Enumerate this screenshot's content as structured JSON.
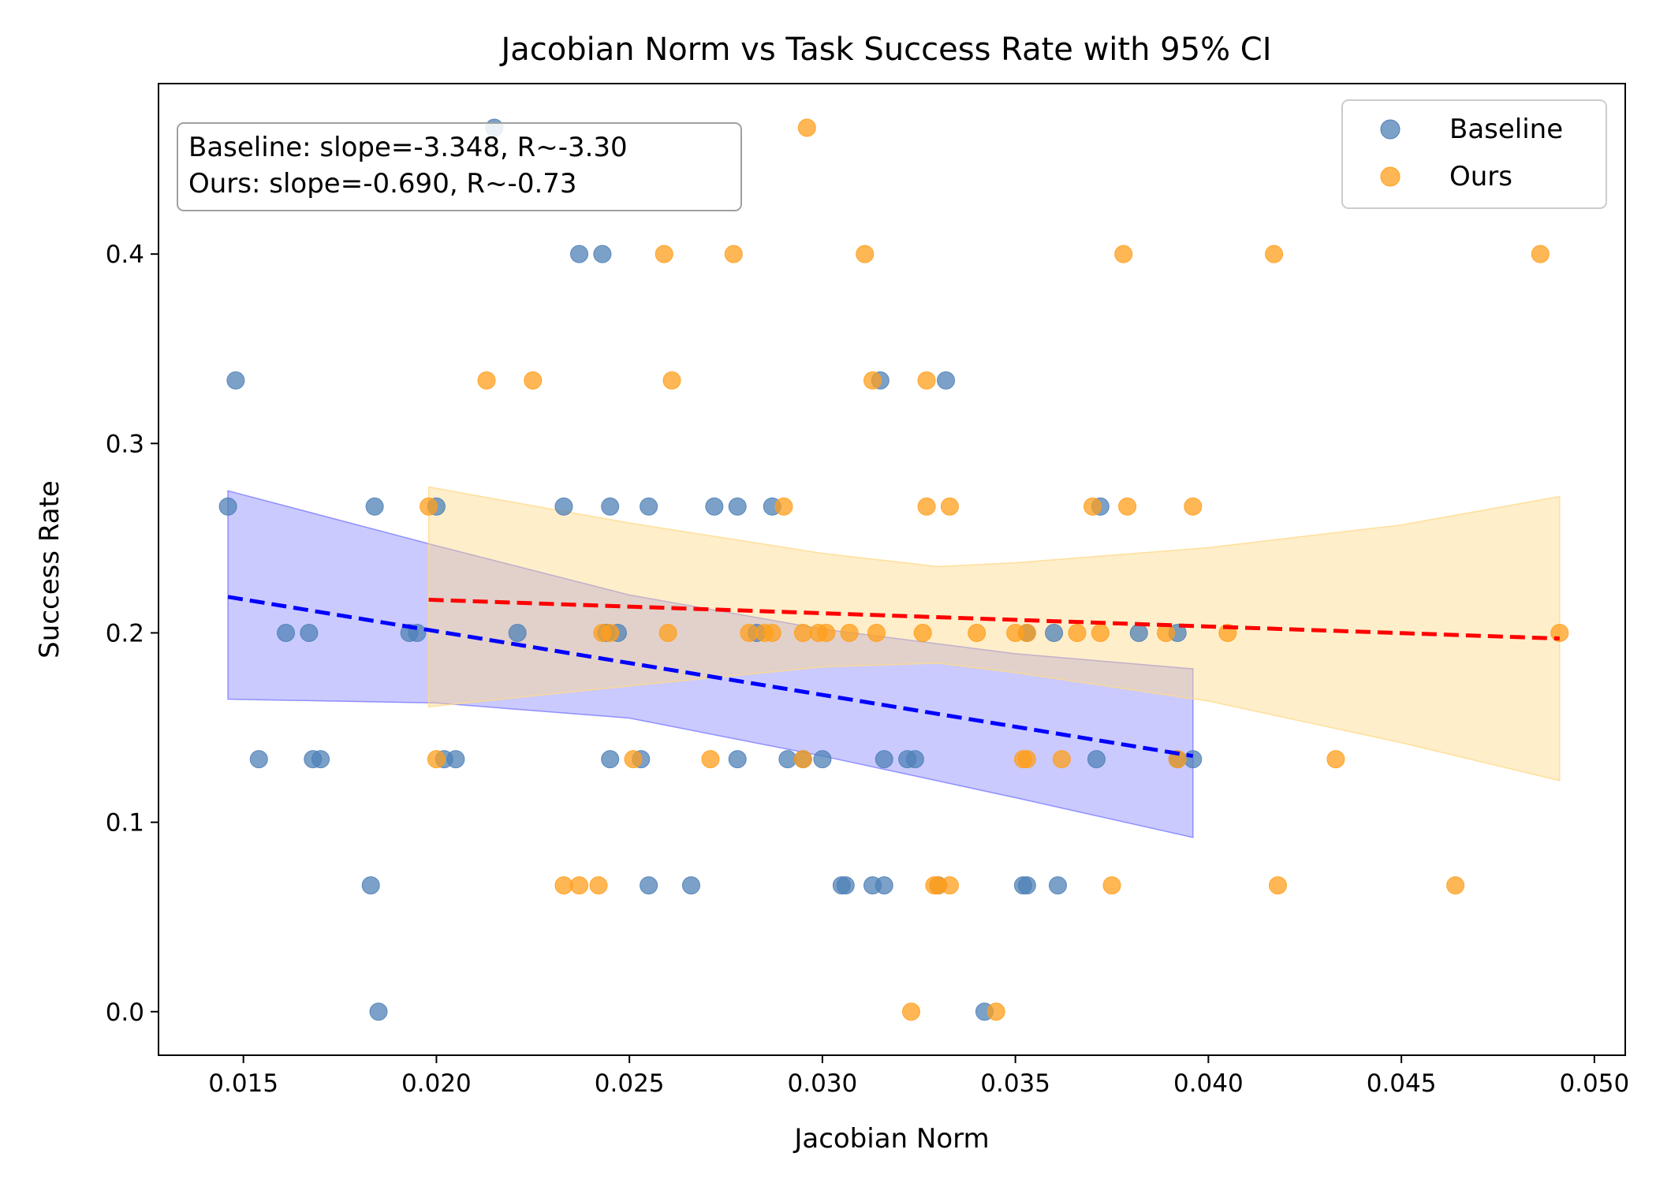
{
  "chart_data": {
    "type": "scatter",
    "title": "Jacobian Norm vs Task Success Rate with 95% CI",
    "xlabel": "Jacobian Norm",
    "ylabel": "Success Rate",
    "xlim": [
      0.0128,
      0.0508
    ],
    "ylim": [
      -0.023,
      0.49
    ],
    "xticks": [
      {
        "value": 0.015,
        "label": "0.015"
      },
      {
        "value": 0.02,
        "label": "0.020"
      },
      {
        "value": 0.025,
        "label": "0.025"
      },
      {
        "value": 0.03,
        "label": "0.030"
      },
      {
        "value": 0.035,
        "label": "0.035"
      },
      {
        "value": 0.04,
        "label": "0.040"
      },
      {
        "value": 0.045,
        "label": "0.045"
      },
      {
        "value": 0.05,
        "label": "0.050"
      }
    ],
    "yticks": [
      {
        "value": 0.0,
        "label": "0.0"
      },
      {
        "value": 0.1,
        "label": "0.1"
      },
      {
        "value": 0.2,
        "label": "0.2"
      },
      {
        "value": 0.3,
        "label": "0.3"
      },
      {
        "value": 0.4,
        "label": "0.4"
      }
    ],
    "legend": {
      "placement": "top-right"
    },
    "annotation": [
      "Baseline: slope=-3.348, R~-3.30",
      "Ours: slope=-0.690, R~-0.73"
    ],
    "series": [
      {
        "name": "Baseline",
        "color": "#4f81b7",
        "points": [
          [
            0.0146,
            0.2667
          ],
          [
            0.0148,
            0.3333
          ],
          [
            0.0154,
            0.1333
          ],
          [
            0.0161,
            0.2
          ],
          [
            0.0167,
            0.2
          ],
          [
            0.0168,
            0.1333
          ],
          [
            0.017,
            0.1333
          ],
          [
            0.0183,
            0.0667
          ],
          [
            0.0184,
            0.2667
          ],
          [
            0.0185,
            0.0
          ],
          [
            0.0193,
            0.2
          ],
          [
            0.0195,
            0.2
          ],
          [
            0.02,
            0.2667
          ],
          [
            0.0202,
            0.1333
          ],
          [
            0.0205,
            0.1333
          ],
          [
            0.0215,
            0.4667
          ],
          [
            0.0221,
            0.2
          ],
          [
            0.0233,
            0.2667
          ],
          [
            0.0237,
            0.4
          ],
          [
            0.0243,
            0.4
          ],
          [
            0.0244,
            0.2
          ],
          [
            0.0245,
            0.1333
          ],
          [
            0.0245,
            0.2667
          ],
          [
            0.0247,
            0.2
          ],
          [
            0.0253,
            0.1333
          ],
          [
            0.0255,
            0.2667
          ],
          [
            0.0255,
            0.0667
          ],
          [
            0.0266,
            0.0667
          ],
          [
            0.0272,
            0.2667
          ],
          [
            0.0278,
            0.2667
          ],
          [
            0.0278,
            0.1333
          ],
          [
            0.0283,
            0.2
          ],
          [
            0.0287,
            0.2667
          ],
          [
            0.0291,
            0.1333
          ],
          [
            0.0295,
            0.1333
          ],
          [
            0.03,
            0.1333
          ],
          [
            0.0305,
            0.0667
          ],
          [
            0.0306,
            0.0667
          ],
          [
            0.0313,
            0.0667
          ],
          [
            0.0315,
            0.3333
          ],
          [
            0.0316,
            0.1333
          ],
          [
            0.0316,
            0.0667
          ],
          [
            0.0322,
            0.1333
          ],
          [
            0.0324,
            0.1333
          ],
          [
            0.033,
            0.0667
          ],
          [
            0.0332,
            0.3333
          ],
          [
            0.0342,
            0.0
          ],
          [
            0.0352,
            0.0667
          ],
          [
            0.0353,
            0.0667
          ],
          [
            0.0353,
            0.2
          ],
          [
            0.036,
            0.2
          ],
          [
            0.0361,
            0.0667
          ],
          [
            0.0371,
            0.1333
          ],
          [
            0.0372,
            0.2667
          ],
          [
            0.0382,
            0.2
          ],
          [
            0.0392,
            0.2
          ],
          [
            0.0392,
            0.1333
          ],
          [
            0.0396,
            0.1333
          ]
        ]
      },
      {
        "name": "Ours",
        "color": "#ff9f1c",
        "points": [
          [
            0.0198,
            0.2667
          ],
          [
            0.02,
            0.1333
          ],
          [
            0.0213,
            0.3333
          ],
          [
            0.0225,
            0.3333
          ],
          [
            0.0233,
            0.0667
          ],
          [
            0.0237,
            0.0667
          ],
          [
            0.0242,
            0.0667
          ],
          [
            0.0243,
            0.2
          ],
          [
            0.0245,
            0.2
          ],
          [
            0.0251,
            0.1333
          ],
          [
            0.0259,
            0.4
          ],
          [
            0.026,
            0.2
          ],
          [
            0.0261,
            0.3333
          ],
          [
            0.0271,
            0.1333
          ],
          [
            0.0277,
            0.4
          ],
          [
            0.0281,
            0.2
          ],
          [
            0.0285,
            0.2
          ],
          [
            0.0287,
            0.2
          ],
          [
            0.029,
            0.2667
          ],
          [
            0.0295,
            0.1333
          ],
          [
            0.0295,
            0.2
          ],
          [
            0.0296,
            0.4667
          ],
          [
            0.0299,
            0.2
          ],
          [
            0.0301,
            0.2
          ],
          [
            0.0307,
            0.2
          ],
          [
            0.0311,
            0.4
          ],
          [
            0.0313,
            0.3333
          ],
          [
            0.0314,
            0.2
          ],
          [
            0.0323,
            0.0
          ],
          [
            0.0326,
            0.2
          ],
          [
            0.0327,
            0.3333
          ],
          [
            0.0327,
            0.2667
          ],
          [
            0.0329,
            0.0667
          ],
          [
            0.033,
            0.0667
          ],
          [
            0.0333,
            0.0667
          ],
          [
            0.0333,
            0.2667
          ],
          [
            0.034,
            0.2
          ],
          [
            0.0345,
            0.0
          ],
          [
            0.035,
            0.2
          ],
          [
            0.0352,
            0.1333
          ],
          [
            0.0353,
            0.1333
          ],
          [
            0.0353,
            0.2
          ],
          [
            0.0362,
            0.1333
          ],
          [
            0.0366,
            0.2
          ],
          [
            0.037,
            0.2667
          ],
          [
            0.0372,
            0.2
          ],
          [
            0.0375,
            0.0667
          ],
          [
            0.0378,
            0.4
          ],
          [
            0.0379,
            0.2667
          ],
          [
            0.0389,
            0.2
          ],
          [
            0.0392,
            0.1333
          ],
          [
            0.0396,
            0.2667
          ],
          [
            0.0405,
            0.2
          ],
          [
            0.0417,
            0.4
          ],
          [
            0.0418,
            0.0667
          ],
          [
            0.0433,
            0.1333
          ],
          [
            0.0464,
            0.0667
          ],
          [
            0.0486,
            0.4
          ],
          [
            0.0491,
            0.2
          ]
        ]
      }
    ],
    "fits": [
      {
        "series": "Baseline",
        "color": "#0000ff",
        "line": [
          [
            0.0146,
            0.219
          ],
          [
            0.0396,
            0.135
          ]
        ],
        "ci_color": "#7b7bff",
        "ci_upper": [
          [
            0.0146,
            0.275
          ],
          [
            0.02,
            0.246
          ],
          [
            0.025,
            0.22
          ],
          [
            0.03,
            0.202
          ],
          [
            0.035,
            0.189
          ],
          [
            0.0396,
            0.181
          ]
        ],
        "ci_lower": [
          [
            0.0146,
            0.165
          ],
          [
            0.02,
            0.163
          ],
          [
            0.025,
            0.155
          ],
          [
            0.03,
            0.135
          ],
          [
            0.035,
            0.113
          ],
          [
            0.0396,
            0.092
          ]
        ]
      },
      {
        "series": "Ours",
        "color": "#ff0000",
        "line": [
          [
            0.0198,
            0.2175
          ],
          [
            0.0491,
            0.197
          ]
        ],
        "ci_color": "#ffd98a",
        "ci_upper": [
          [
            0.0198,
            0.277
          ],
          [
            0.025,
            0.258
          ],
          [
            0.03,
            0.242
          ],
          [
            0.033,
            0.235
          ],
          [
            0.035,
            0.237
          ],
          [
            0.04,
            0.245
          ],
          [
            0.045,
            0.257
          ],
          [
            0.0491,
            0.272
          ]
        ],
        "ci_lower": [
          [
            0.0198,
            0.161
          ],
          [
            0.025,
            0.172
          ],
          [
            0.03,
            0.182
          ],
          [
            0.033,
            0.184
          ],
          [
            0.035,
            0.179
          ],
          [
            0.04,
            0.164
          ],
          [
            0.045,
            0.142
          ],
          [
            0.0491,
            0.122
          ]
        ]
      }
    ]
  }
}
